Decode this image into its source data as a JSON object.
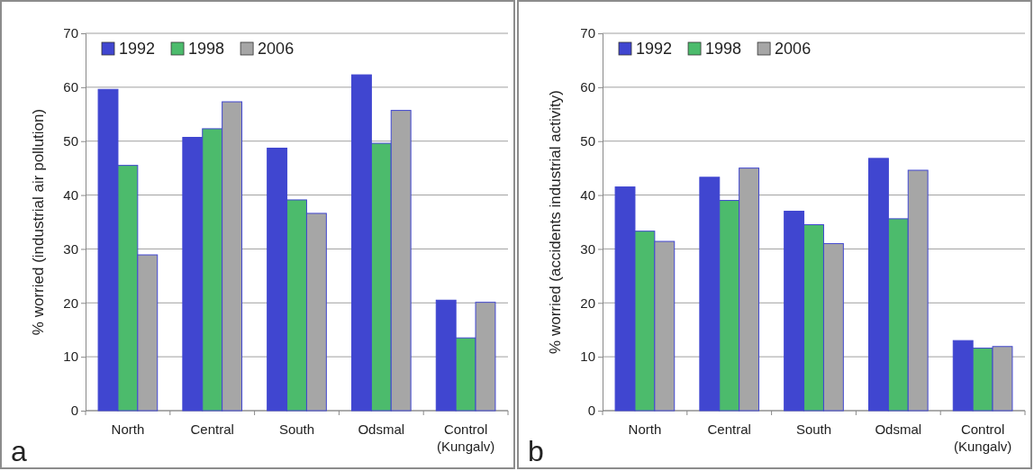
{
  "chart_data": [
    {
      "type": "bar",
      "ylabel": "% worried (industrial air pollution)",
      "categories": [
        "North",
        "Central",
        "South",
        "Odsmal",
        "Control (Kungalv)"
      ],
      "series": [
        {
          "name": "1992",
          "color": "#4046d0",
          "values": [
            59.6,
            50.7,
            48.7,
            62.3,
            20.5
          ]
        },
        {
          "name": "1998",
          "color": "#4cbb6c",
          "values": [
            45.5,
            52.3,
            39.1,
            49.6,
            13.5
          ]
        },
        {
          "name": "2006",
          "color": "#a6a6a6",
          "values": [
            28.9,
            57.3,
            36.6,
            55.7,
            20.1
          ]
        }
      ],
      "ylim": [
        0,
        70
      ],
      "yticks": [
        0,
        10,
        20,
        30,
        40,
        50,
        60,
        70
      ],
      "grid": "y",
      "legend": "top left",
      "annotations": [
        "a"
      ]
    },
    {
      "type": "bar",
      "ylabel": "% worried (accidents industrial activity)",
      "categories": [
        "North",
        "Central",
        "South",
        "Odsmal",
        "Control (Kungalv)"
      ],
      "series": [
        {
          "name": "1992",
          "color": "#4046d0",
          "values": [
            41.5,
            43.3,
            37,
            46.8,
            13
          ]
        },
        {
          "name": "1998",
          "color": "#4cbb6c",
          "values": [
            33.3,
            39,
            34.5,
            35.6,
            11.6
          ]
        },
        {
          "name": "2006",
          "color": "#a6a6a6",
          "values": [
            31.4,
            45,
            31,
            44.6,
            11.9
          ]
        }
      ],
      "ylim": [
        0,
        70
      ],
      "yticks": [
        0,
        10,
        20,
        30,
        40,
        50,
        60,
        70
      ],
      "grid": "y",
      "legend": "top left",
      "annotations": [
        "b"
      ]
    }
  ]
}
